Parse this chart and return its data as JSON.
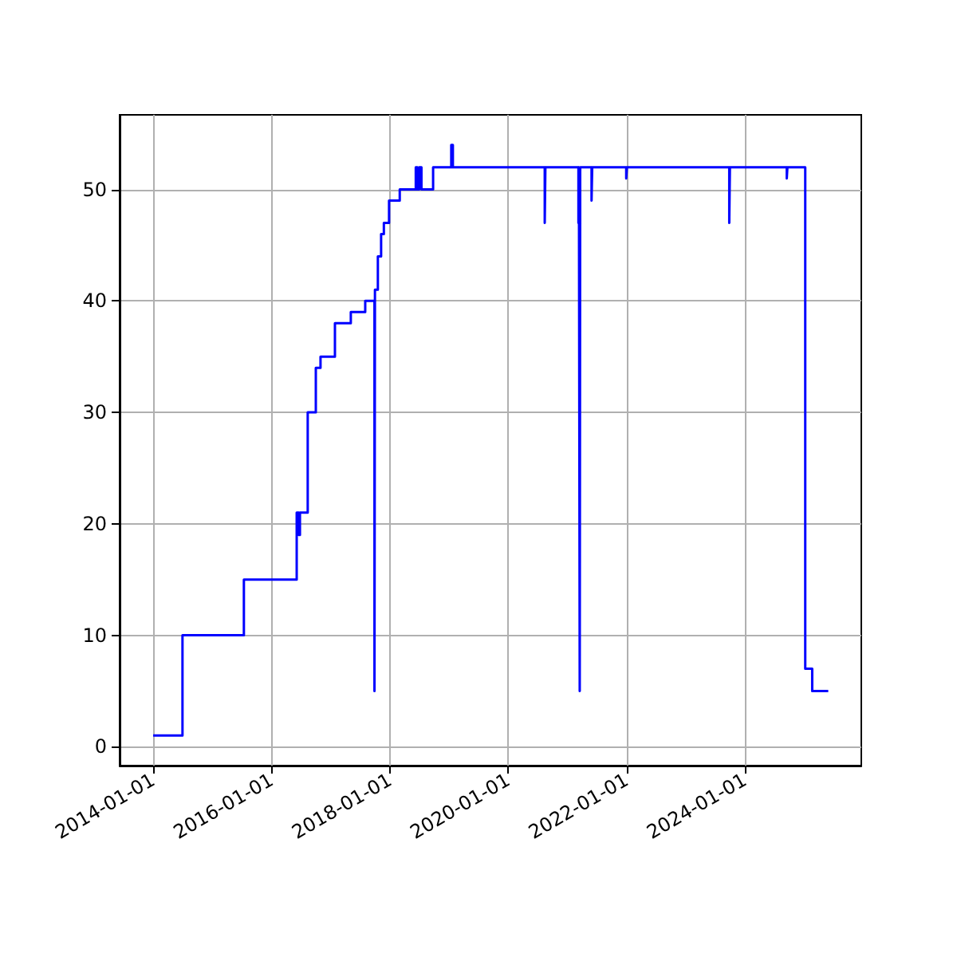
{
  "chart_data": {
    "type": "step",
    "color": "#0000ff",
    "x": [
      "2014-01-01",
      "2014-07-01",
      "2015-07-15",
      "2016-06-05",
      "2016-06-18",
      "2016-06-25",
      "2016-08-12",
      "2016-10-01",
      "2016-10-30",
      "2017-01-27",
      "2017-05-05",
      "2017-08-02",
      "2017-09-28",
      "2017-10-01",
      "2017-10-19",
      "2017-11-08",
      "2017-11-25",
      "2017-12-27",
      "2018-03-03",
      "2018-06-10",
      "2018-06-20",
      "2018-07-01",
      "2018-07-15",
      "2018-09-25",
      "2019-01-15",
      "2019-01-25",
      "2020-08-14",
      "2020-08-18",
      "2021-03-10",
      "2021-03-13",
      "2021-03-18",
      "2021-03-21",
      "2021-05-30",
      "2021-06-03",
      "2021-12-30",
      "2022-01-03",
      "2023-09-27",
      "2023-10-01",
      "2024-09-16",
      "2024-09-20",
      "2025-01-08",
      "2025-02-20",
      "2025-05-30"
    ],
    "values": [
      1,
      10,
      15,
      21,
      19,
      21,
      30,
      34,
      35,
      38,
      39,
      40,
      5,
      41,
      44,
      46,
      47,
      49,
      50,
      52,
      50,
      52,
      50,
      52,
      54,
      52,
      47,
      52,
      47,
      52,
      5,
      52,
      49,
      52,
      51,
      52,
      47,
      52,
      51,
      52,
      7,
      5,
      5
    ],
    "xlim": [
      "2013-06-08",
      "2025-12-20"
    ],
    "ylim": [
      -1.7,
      56.7
    ],
    "xticks": [
      "2014-01-01",
      "2016-01-01",
      "2018-01-01",
      "2020-01-01",
      "2022-01-01",
      "2024-01-01"
    ],
    "yticks": [
      0,
      10,
      20,
      30,
      40,
      50
    ],
    "grid": true,
    "marker": "none",
    "line_style": "solid"
  }
}
